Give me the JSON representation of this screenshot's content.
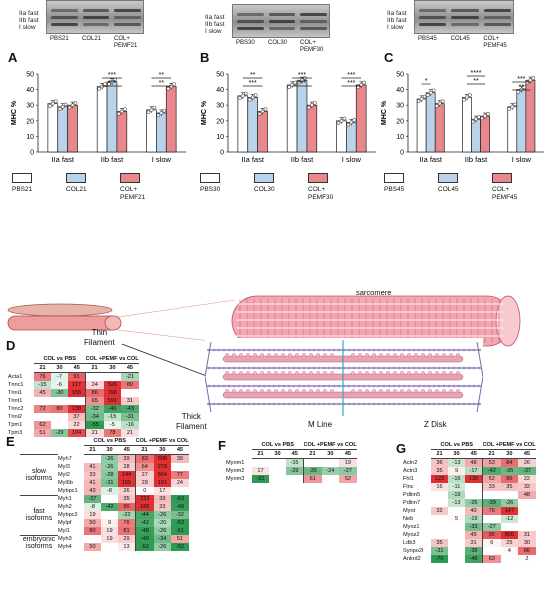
{
  "panels": {
    "A": {
      "letter": "A",
      "lanes": [
        "PBS21",
        "COL21",
        "COL+\nPEMF21"
      ],
      "bands": [
        "IIa fast",
        "IIb fast",
        "I slow"
      ],
      "legend": [
        "PBS21",
        "COL21",
        "COL+\nPEMF21"
      ],
      "sig": [
        "***",
        "***",
        "**",
        "**"
      ]
    },
    "B": {
      "letter": "B",
      "lanes": [
        "PBS30",
        "COL30",
        "COL+\nPEMF30"
      ],
      "bands": [
        "IIa fast",
        "IIb fast",
        "I slow"
      ],
      "legend": [
        "PBS30",
        "COL30",
        "COL+\nPEMF30"
      ],
      "sig": [
        "***",
        "**",
        "***",
        "***",
        "***",
        "***"
      ]
    },
    "C": {
      "letter": "C",
      "lanes": [
        "PBS45",
        "COL45",
        "COL+\nPEMF45"
      ],
      "bands": [
        "IIa fast",
        "IIb fast",
        "I slow"
      ],
      "legend": [
        "PBS45",
        "COL45",
        "COL+\nPEMF45"
      ],
      "sig": [
        "*",
        "**",
        "****",
        "**",
        "***"
      ]
    }
  },
  "colors": {
    "pbs": "#ffffff",
    "col": "#b9d3ea",
    "pemf": "#e8888c",
    "red": "#e03030",
    "green": "#2e9a52",
    "pink": "#f3b9bd"
  },
  "chart_data": [
    {
      "type": "bar",
      "panel": "A",
      "categories": [
        "IIa fast",
        "IIb fast",
        "I slow"
      ],
      "ylabel": "MHC %",
      "ylim": [
        0,
        50
      ],
      "yticks": [
        0,
        10,
        20,
        30,
        40,
        50
      ],
      "series": [
        {
          "name": "PBS21",
          "values": [
            31,
            42,
            27
          ]
        },
        {
          "name": "COL21",
          "values": [
            29,
            45,
            25
          ]
        },
        {
          "name": "COL+PEMF21",
          "values": [
            30,
            26,
            42
          ]
        }
      ]
    },
    {
      "type": "bar",
      "panel": "B",
      "categories": [
        "IIa fast",
        "IIb fast",
        "I slow"
      ],
      "ylabel": "MHC %",
      "ylim": [
        0,
        50
      ],
      "yticks": [
        0,
        10,
        20,
        30,
        40,
        50
      ],
      "series": [
        {
          "name": "PBS30",
          "values": [
            36,
            43,
            20
          ]
        },
        {
          "name": "COL30",
          "values": [
            35,
            46,
            19
          ]
        },
        {
          "name": "COL+PEMF30",
          "values": [
            26,
            30,
            43
          ]
        }
      ]
    },
    {
      "type": "bar",
      "panel": "C",
      "categories": [
        "IIa fast",
        "IIb fast",
        "I slow"
      ],
      "ylabel": "MHC %",
      "ylim": [
        0,
        50
      ],
      "yticks": [
        0,
        10,
        20,
        30,
        40,
        50
      ],
      "series": [
        {
          "name": "PBS45",
          "values": [
            34,
            35,
            29
          ]
        },
        {
          "name": "COL45",
          "values": [
            38,
            21,
            40
          ]
        },
        {
          "name": "COL+PEMF45",
          "values": [
            31,
            23,
            46
          ]
        }
      ]
    }
  ],
  "diagram": {
    "sarcomere": "sarcomere",
    "thin": "Thin\nFilament",
    "thick": "Thick\nFilament",
    "mline": "M Line",
    "zdisk": "Z Disk"
  },
  "D": {
    "letter": "D",
    "g1": "COL vs PBS",
    "g2": "COL +PEMF vs COL",
    "days": [
      "21",
      "30",
      "45",
      "21",
      "30",
      "45"
    ],
    "rows": [
      {
        "n": "Acta1",
        "v": [
          "76",
          "-7",
          "91",
          "",
          "",
          "-21"
        ]
      },
      {
        "n": "Tnnc1",
        "v": [
          "-15",
          "-6",
          "117",
          "24",
          "526",
          "80"
        ]
      },
      {
        "n": "Tnni1",
        "v": [
          "45",
          "-30",
          "156",
          "86",
          "398",
          ""
        ]
      },
      {
        "n": "Tnnt1",
        "v": [
          "",
          "",
          "",
          "65",
          "591",
          "31"
        ]
      },
      {
        "n": "Tnnc2",
        "v": [
          "72",
          "80",
          "138",
          "-32",
          "-46",
          "-43"
        ]
      },
      {
        "n": "Tnni2",
        "v": [
          "",
          "",
          "37",
          "-34",
          "-15",
          "-31"
        ]
      },
      {
        "n": "Tpm1",
        "v": [
          "62",
          "",
          "22",
          "-55",
          "-5",
          "-16"
        ]
      },
      {
        "n": "Tpm3",
        "v": [
          "51",
          "-29",
          "104",
          "21",
          "78",
          "21"
        ]
      }
    ]
  },
  "E": {
    "letter": "E",
    "g1": "COL vs PBS",
    "g2": "COL +PEMF vs COL",
    "days": [
      "21",
      "30",
      "45",
      "21",
      "30",
      "45"
    ],
    "groups": [
      "slow\nisoforms",
      "fast\nisoforms",
      "embryonic\nisoforms"
    ],
    "rows": [
      {
        "n": "Myh7",
        "v": [
          "",
          "-26",
          "39",
          "83",
          "508",
          "39"
        ]
      },
      {
        "n": "Myl3",
        "v": [
          "41",
          "-26",
          "28",
          "64",
          "279",
          ""
        ]
      },
      {
        "n": "Myl2",
        "v": [
          "33",
          "-28",
          "144",
          "27",
          "564",
          "77"
        ]
      },
      {
        "n": "Myl6b",
        "v": [
          "41",
          "-31",
          "155",
          "29",
          "161",
          "24"
        ]
      },
      {
        "n": "Mybpc1",
        "v": [
          "43",
          "-8",
          "26",
          "0",
          "17",
          ""
        ]
      },
      {
        "n": "Myh1",
        "v": [
          "-37",
          "",
          "35",
          "233",
          "39",
          "-63"
        ]
      },
      {
        "n": "Myh2",
        "v": [
          "-8",
          "-42",
          "90",
          "186",
          "33",
          "-48"
        ]
      },
      {
        "n": "Mybpc2",
        "v": [
          "19",
          "",
          "-22",
          "-44",
          "-26",
          "-32"
        ]
      },
      {
        "n": "Mylpf",
        "v": [
          "50",
          "9",
          "76",
          "-42",
          "-20",
          "-53"
        ]
      },
      {
        "n": "Myl1",
        "v": [
          "80",
          "19",
          "81",
          "-48",
          "-26",
          "-51"
        ]
      },
      {
        "n": "Myh3",
        "v": [
          "",
          "19",
          "29",
          "-49",
          "-34",
          "51"
        ]
      },
      {
        "n": "Myh4",
        "v": [
          "50",
          "",
          "13",
          "-52",
          "-26",
          "-52"
        ]
      }
    ]
  },
  "F": {
    "letter": "F",
    "g1": "COL vs PBS",
    "g2": "COL +PEMF vs COL",
    "days": [
      "21",
      "30",
      "45",
      "21",
      "30",
      "45"
    ],
    "rows": [
      {
        "n": "Myom1",
        "v": [
          "",
          "",
          "-15",
          "",
          "",
          "19"
        ]
      },
      {
        "n": "Myom2",
        "v": [
          "17",
          "",
          "-29",
          "-35",
          "-24",
          "-27"
        ]
      },
      {
        "n": "Myom3",
        "v": [
          "-51",
          "",
          "",
          "61",
          "",
          "52"
        ]
      }
    ]
  },
  "G": {
    "letter": "G",
    "g1": "COL vs PBS",
    "g2": "COL +PEMF vs COL",
    "days": [
      "21",
      "30",
      "45",
      "21",
      "30",
      "45"
    ],
    "rows": [
      {
        "n": "Actn2",
        "v": [
          "36",
          "-13",
          "48",
          "53",
          "84",
          "26"
        ]
      },
      {
        "n": "Actn3",
        "v": [
          "35",
          "9",
          "-17",
          "-42",
          "-35",
          "-37"
        ]
      },
      {
        "n": "Fhl1",
        "v": [
          "123",
          "-16",
          "130",
          "52",
          "86",
          "22"
        ]
      },
      {
        "n": "Flnc",
        "v": [
          "16",
          "-11",
          "",
          "33",
          "35",
          "32"
        ]
      },
      {
        "n": "Pdlim5",
        "v": [
          "",
          "-19",
          "",
          "",
          "",
          "48"
        ]
      },
      {
        "n": "Pdlim7",
        "v": [
          "",
          "-13",
          "-26",
          "-39",
          "-26",
          ""
        ]
      },
      {
        "n": "Myot",
        "v": [
          "32",
          "",
          "40",
          "76",
          "147",
          ""
        ]
      },
      {
        "n": "Neb",
        "v": [
          "",
          "5",
          "-19",
          "",
          "-12",
          ""
        ]
      },
      {
        "n": "Myoz1",
        "v": [
          "",
          "",
          "-33",
          "-27",
          "",
          ""
        ]
      },
      {
        "n": "Myoz2",
        "v": [
          "",
          "",
          "45",
          "96",
          "806",
          "31"
        ]
      },
      {
        "n": "Ldb3",
        "v": [
          "35",
          "",
          "31",
          "6",
          "25",
          "30"
        ]
      },
      {
        "n": "Synpo2l",
        "v": [
          "-31",
          "",
          "-39",
          "",
          "4",
          "86"
        ]
      },
      {
        "n": "Ankrd2",
        "v": [
          "-70",
          "",
          "-46",
          "63",
          "",
          "2"
        ]
      }
    ]
  }
}
